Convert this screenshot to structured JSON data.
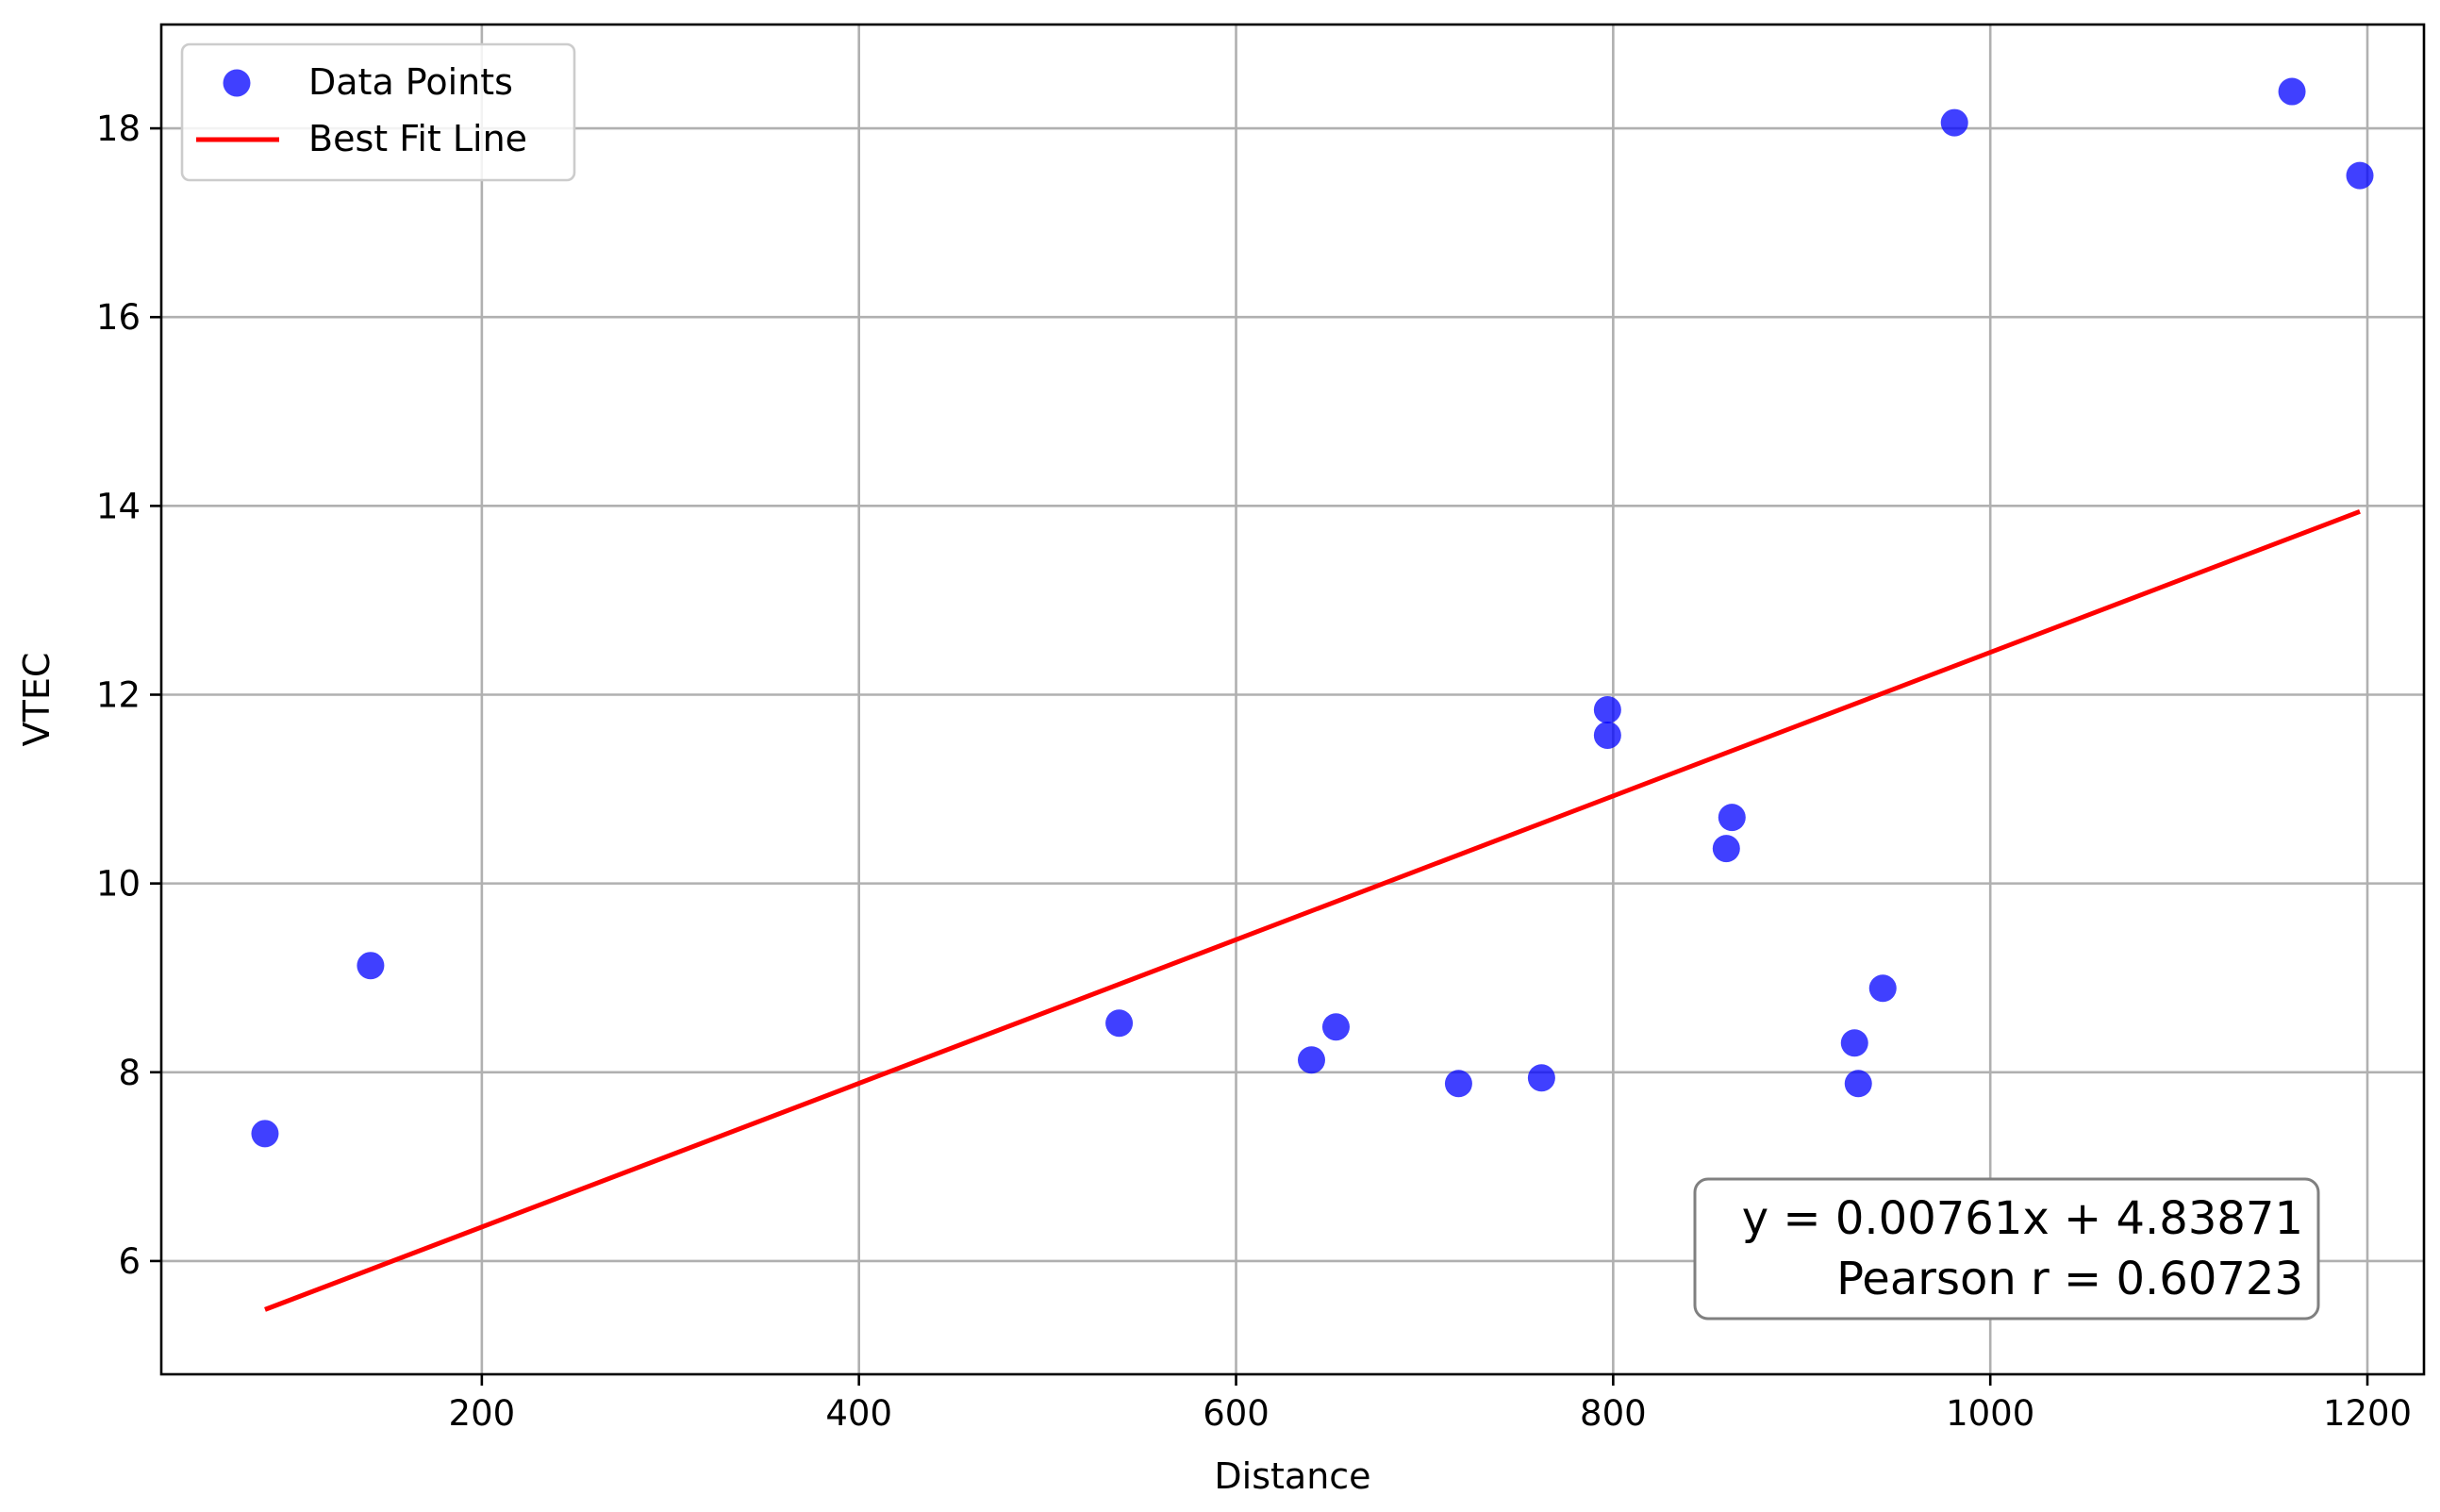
{
  "chart_data": {
    "type": "scatter",
    "title": "",
    "xlabel": "Distance",
    "ylabel": "VTEC",
    "xlim": [
      30,
      1230
    ],
    "ylim": [
      4.8,
      19.1
    ],
    "x_ticks": [
      200,
      400,
      600,
      800,
      1000,
      1200
    ],
    "y_ticks": [
      6,
      8,
      10,
      12,
      14,
      16,
      18
    ],
    "grid": true,
    "legend": {
      "placement": "upper-left",
      "entries": [
        {
          "label": "Data Points",
          "kind": "marker",
          "color": "#0000ff"
        },
        {
          "label": "Best Fit Line",
          "kind": "line",
          "color": "#ff0000"
        }
      ]
    },
    "series": [
      {
        "name": "Data Points",
        "kind": "scatter",
        "color": "#0000ff",
        "points": [
          {
            "x": 85,
            "y": 7.35
          },
          {
            "x": 141,
            "y": 9.13
          },
          {
            "x": 538,
            "y": 8.52
          },
          {
            "x": 640,
            "y": 8.13
          },
          {
            "x": 653,
            "y": 8.48
          },
          {
            "x": 718,
            "y": 7.88
          },
          {
            "x": 762,
            "y": 7.94
          },
          {
            "x": 797,
            "y": 11.84
          },
          {
            "x": 797,
            "y": 11.57
          },
          {
            "x": 860,
            "y": 10.37
          },
          {
            "x": 863,
            "y": 10.7
          },
          {
            "x": 928,
            "y": 8.31
          },
          {
            "x": 930,
            "y": 7.88
          },
          {
            "x": 943,
            "y": 8.89
          },
          {
            "x": 981,
            "y": 18.06
          },
          {
            "x": 1160,
            "y": 18.39
          },
          {
            "x": 1196,
            "y": 17.5
          }
        ]
      },
      {
        "name": "Best Fit Line",
        "kind": "line",
        "color": "#ff0000",
        "slope": 0.00761,
        "intercept": 4.83871,
        "x": [
          85,
          1196
        ]
      }
    ],
    "annotation": {
      "placement": "bottom-right",
      "lines": [
        "y = 0.00761x + 4.83871",
        "Pearson r = 0.60723"
      ]
    }
  }
}
